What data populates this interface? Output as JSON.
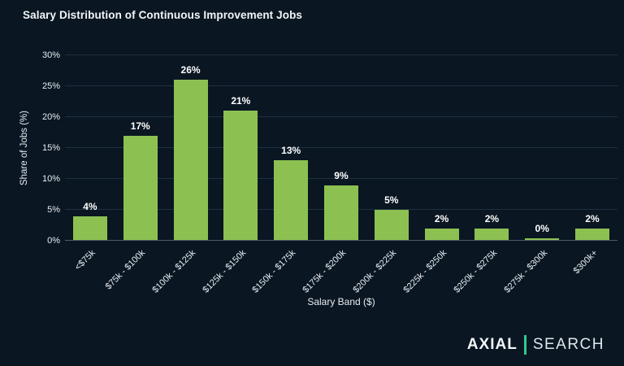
{
  "title": "Salary Distribution of Continuous Improvement Jobs",
  "chart_data": {
    "type": "bar",
    "title": "Salary Distribution of Continuous Improvement Jobs",
    "categories": [
      "<$75k",
      "$75k - $100k",
      "$100k - $125k",
      "$125k - $150k",
      "$150k - $175k",
      "$175k - $200k",
      "$200k - $225k",
      "$225k - $250k",
      "$250k - $275k",
      "$275k - $300k",
      "$300k+"
    ],
    "values": [
      4,
      17,
      26,
      21,
      13,
      9,
      5,
      2,
      2,
      0,
      2
    ],
    "bar_labels": [
      "4%",
      "17%",
      "26%",
      "21%",
      "13%",
      "9%",
      "5%",
      "2%",
      "2%",
      "0%",
      "2%"
    ],
    "xlabel": "Salary Band ($)",
    "ylabel": "Share of Jobs (%)",
    "ylim": [
      0,
      30
    ],
    "yticks": [
      "0%",
      "5%",
      "10%",
      "15%",
      "20%",
      "25%",
      "30%"
    ],
    "grid": true,
    "legend": "none",
    "bar_color": "#8CC152"
  },
  "colors": {
    "background": "#0A1622",
    "bar": "#8CC152",
    "gridline": "#1E3042",
    "axis_line": "#4D5D6C",
    "text": "#EEF2F5",
    "logo_divider": "#2FCB8E"
  },
  "logo": {
    "primary": "AXIAL",
    "secondary": "SEARCH"
  }
}
